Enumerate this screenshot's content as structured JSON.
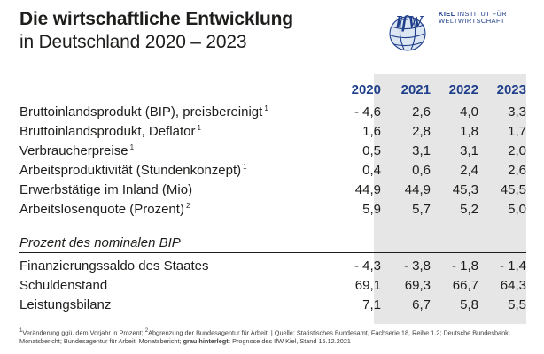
{
  "title": "Die wirtschaftliche Entwicklung",
  "subtitle": "in Deutschland 2020 – 2023",
  "logo": {
    "wordmark": "IfW",
    "line1_bold": "KIEL",
    "line1_rest": "INSTITUT FÜR",
    "line2": "WELTWIRTSCHAFT",
    "accent_color": "#1f3f8a"
  },
  "columns": [
    "2020",
    "2021",
    "2022",
    "2023"
  ],
  "rows": [
    {
      "label": "Bruttoinlandsprodukt (BIP), preisbereinigt",
      "note": "1",
      "values": [
        "- 4,6",
        "2,6",
        "4,0",
        "3,3"
      ]
    },
    {
      "label": "Bruttoinlandsprodukt, Deflator",
      "note": "1",
      "values": [
        "1,6",
        "2,8",
        "1,8",
        "1,7"
      ]
    },
    {
      "label": "Verbraucherpreise",
      "note": "1",
      "values": [
        "0,5",
        "3,1",
        "3,1",
        "2,0"
      ]
    },
    {
      "label": "Arbeitsproduktivität (Stundenkonzept)",
      "note": "1",
      "values": [
        "0,4",
        "0,6",
        "2,4",
        "2,6"
      ]
    },
    {
      "label": "Erwerbstätige im Inland (Mio)",
      "note": "",
      "values": [
        "44,9",
        "44,9",
        "45,3",
        "45,5"
      ]
    },
    {
      "label": "Arbeitslosenquote (Prozent)",
      "note": "2",
      "values": [
        "5,9",
        "5,7",
        "5,2",
        "5,0"
      ]
    }
  ],
  "section_label": "Prozent des nominalen BIP",
  "rows2": [
    {
      "label": "Finanzierungssaldo des Staates",
      "values": [
        "- 4,3",
        "- 3,8",
        "- 1,8",
        "- 1,4"
      ]
    },
    {
      "label": "Schuldenstand",
      "values": [
        "69,1",
        "69,3",
        "66,7",
        "64,3"
      ]
    },
    {
      "label": "Leistungsbilanz",
      "values": [
        "7,1",
        "6,7",
        "5,8",
        "5,5"
      ]
    }
  ],
  "footnote": {
    "part1": "Veränderung ggü. dem Vorjahr in Prozent;",
    "part2": "Abgrenzung der Bundesagentur für Arbeit. | Quelle: Statistisches Bundesamt, Fachserie 18, Reihe 1.2; Deutsche Bundesbank, Monatsbericht; Bundesagentur für Arbeit, Monatsbericht;",
    "bold": "grau hinterlegt:",
    "part3": "Prognose des IfW Kiel, Stand 15.12.2021",
    "mark1": "1",
    "mark2": "2"
  },
  "colors": {
    "header_blue": "#1f3f8a",
    "forecast_shade": "#e6e6e6"
  }
}
